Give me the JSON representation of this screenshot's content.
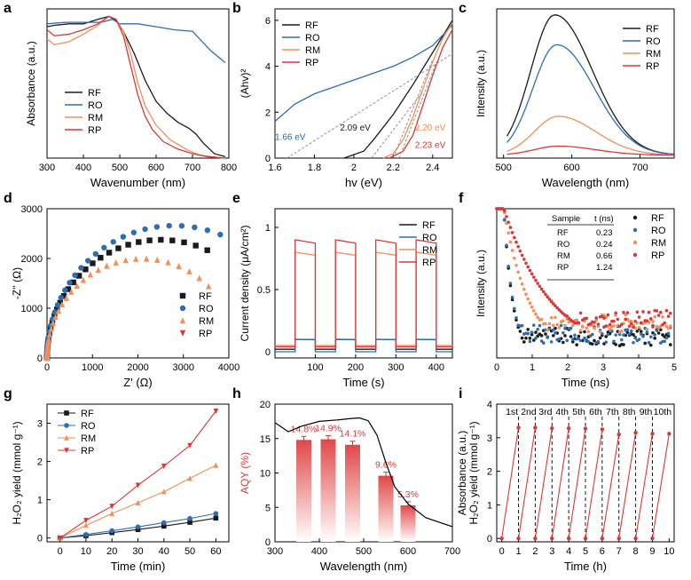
{
  "colors": {
    "RF": "#1a1a1a",
    "RO": "#2e6db0",
    "RM": "#f0905a",
    "RP": "#d9383a",
    "AQY_bar": "#e04848",
    "bg": "#ffffff"
  },
  "chart_data": [
    {
      "panel": "a",
      "type": "line",
      "title": "",
      "xlabel": "Wavenumber (nm)",
      "ylabel": "Absorbance (a.u.)",
      "xlim": [
        300,
        800
      ],
      "ylim": [
        0,
        1
      ],
      "xticks": [
        300,
        400,
        500,
        600,
        700,
        800
      ],
      "yticks": [],
      "legend": [
        "RF",
        "RO",
        "RM",
        "RP"
      ],
      "legend_position": "bottom-left",
      "series": [
        {
          "name": "RF",
          "x": [
            300,
            320,
            360,
            400,
            440,
            470,
            490,
            510,
            540,
            570,
            600,
            630,
            660,
            690,
            710,
            730,
            760,
            790
          ],
          "y": [
            0.88,
            0.89,
            0.9,
            0.9,
            0.93,
            0.95,
            0.92,
            0.85,
            0.7,
            0.52,
            0.38,
            0.3,
            0.24,
            0.2,
            0.16,
            0.1,
            0.03,
            0.01
          ]
        },
        {
          "name": "RO",
          "x": [
            300,
            350,
            400,
            450,
            480,
            500,
            550,
            600,
            650,
            700,
            750,
            790
          ],
          "y": [
            0.9,
            0.91,
            0.91,
            0.91,
            0.93,
            0.9,
            0.9,
            0.88,
            0.86,
            0.85,
            0.72,
            0.64
          ]
        },
        {
          "name": "RM",
          "x": [
            300,
            320,
            360,
            400,
            440,
            470,
            490,
            510,
            530,
            550,
            570,
            600,
            640,
            690,
            720,
            750,
            790
          ],
          "y": [
            0.8,
            0.76,
            0.78,
            0.83,
            0.89,
            0.95,
            0.93,
            0.85,
            0.7,
            0.5,
            0.35,
            0.22,
            0.12,
            0.05,
            0.02,
            0.01,
            0.0
          ]
        },
        {
          "name": "RP",
          "x": [
            300,
            320,
            360,
            400,
            440,
            470,
            490,
            510,
            530,
            550,
            570,
            590,
            620,
            660,
            700,
            740,
            790
          ],
          "y": [
            0.86,
            0.82,
            0.83,
            0.86,
            0.9,
            0.95,
            0.93,
            0.82,
            0.62,
            0.42,
            0.28,
            0.19,
            0.11,
            0.06,
            0.03,
            0.01,
            0.0
          ]
        }
      ]
    },
    {
      "panel": "b",
      "type": "line",
      "title": "",
      "xlabel": "hv (eV)",
      "ylabel": "(Ahv)²",
      "xlim": [
        1.6,
        2.5
      ],
      "ylim": [
        0,
        6.5
      ],
      "xticks": [
        1.6,
        1.8,
        2.0,
        2.2,
        2.4
      ],
      "yticks": [
        0,
        2,
        4,
        6
      ],
      "legend": [
        "RF",
        "RO",
        "RM",
        "RP"
      ],
      "legend_position": "top-left",
      "series": [
        {
          "name": "RF",
          "x": [
            1.95,
            2.05,
            2.1,
            2.2,
            2.3,
            2.4,
            2.5
          ],
          "y": [
            0.0,
            0.3,
            0.8,
            1.9,
            3.2,
            4.6,
            6.0
          ]
        },
        {
          "name": "RO",
          "x": [
            1.6,
            1.7,
            1.8,
            1.9,
            2.0,
            2.1,
            2.2,
            2.3,
            2.4,
            2.5
          ],
          "y": [
            1.6,
            2.35,
            2.8,
            3.1,
            3.4,
            3.7,
            4.0,
            4.4,
            4.9,
            5.8
          ]
        },
        {
          "name": "RM",
          "x": [
            2.15,
            2.2,
            2.25,
            2.3,
            2.35,
            2.4,
            2.45,
            2.5
          ],
          "y": [
            0.0,
            0.2,
            0.8,
            1.8,
            3.0,
            4.2,
            5.2,
            5.9
          ]
        },
        {
          "name": "RP",
          "x": [
            2.18,
            2.25,
            2.3,
            2.35,
            2.4,
            2.45,
            2.5
          ],
          "y": [
            0.0,
            0.3,
            1.0,
            2.3,
            3.6,
            4.8,
            5.6
          ]
        }
      ],
      "annotations": [
        {
          "text": "1.66 eV",
          "color": "#2e6db0",
          "x": 1.6,
          "y": 0.8
        },
        {
          "text": "2.09 eV",
          "color": "#1a1a1a",
          "x": 1.93,
          "y": 1.2
        },
        {
          "text": "2.20 eV",
          "color": "#f0905a",
          "x": 2.31,
          "y": 1.2
        },
        {
          "text": "2.23 eV",
          "color": "#d9383a",
          "x": 2.31,
          "y": 0.45
        }
      ]
    },
    {
      "panel": "c",
      "type": "line",
      "title": "",
      "xlabel": "Wavelength (nm)",
      "ylabel": "Intensity (a.u.)",
      "xlim": [
        490,
        750
      ],
      "ylim": [
        0,
        1
      ],
      "xticks": [
        500,
        600,
        700
      ],
      "yticks": [],
      "legend": [
        "RF",
        "RO",
        "RM",
        "RP"
      ],
      "legend_position": "top-right",
      "series": [
        {
          "name": "RF",
          "peak": 575,
          "amp": 0.94
        },
        {
          "name": "RO",
          "peak": 578,
          "amp": 0.74
        },
        {
          "name": "RM",
          "peak": 580,
          "amp": 0.26
        },
        {
          "name": "RP",
          "peak": 580,
          "amp": 0.06
        }
      ]
    },
    {
      "panel": "d",
      "type": "scatter",
      "title": "",
      "xlabel": "Z' (Ω)",
      "ylabel": "-Z'' (Ω)",
      "xlim": [
        0,
        4000
      ],
      "ylim": [
        0,
        3000
      ],
      "xticks": [
        0,
        1000,
        2000,
        3000,
        4000
      ],
      "yticks": [
        0,
        1000,
        2000,
        3000
      ],
      "legend": [
        "RF",
        "RO",
        "RM",
        "RP"
      ],
      "legend_position": "bottom-right",
      "series": [
        {
          "name": "RF",
          "R": 5000,
          "xmax": 3650
        },
        {
          "name": "RO",
          "R": 5600,
          "xmax": 3950
        },
        {
          "name": "RM",
          "R": 4200,
          "xmax": 3650
        },
        {
          "name": "RP",
          "R": 3400,
          "xmax": 3550
        }
      ]
    },
    {
      "panel": "e",
      "type": "line",
      "title": "",
      "xlabel": "Time (s)",
      "ylabel": "Current density (μA/cm²)",
      "xlim": [
        0,
        440
      ],
      "ylim": [
        -0.05,
        1.15
      ],
      "xticks": [
        100,
        200,
        300,
        400
      ],
      "yticks": [
        0.0,
        0.5,
        1.0
      ],
      "legend": [
        "RF",
        "RO",
        "RM",
        "RP"
      ],
      "legend_position": "top-right",
      "on_intervals": [
        [
          50,
          100
        ],
        [
          150,
          200
        ],
        [
          250,
          300
        ],
        [
          350,
          400
        ]
      ],
      "series": [
        {
          "name": "RF",
          "on": 0.1,
          "off": 0.02
        },
        {
          "name": "RO",
          "on": 0.1,
          "off": 0.0
        },
        {
          "name": "RM",
          "on": 0.8,
          "off": 0.05
        },
        {
          "name": "RP",
          "on": 0.9,
          "off": 0.04
        }
      ]
    },
    {
      "panel": "f",
      "type": "scatter",
      "title": "",
      "xlabel": "Time (ns)",
      "ylabel": "Intensity (a.u.)",
      "xlim": [
        0,
        5
      ],
      "ylim": [
        0,
        1
      ],
      "xticks": [
        0,
        1,
        2,
        3,
        4,
        5
      ],
      "yticks": [],
      "legend": [
        "RF",
        "RO",
        "RM",
        "RP"
      ],
      "legend_position": "top-right",
      "table_header": [
        "Sample",
        "t (ns)"
      ],
      "table_rows": [
        [
          "RF",
          "0.23"
        ],
        [
          "RO",
          "0.24"
        ],
        [
          "RM",
          "0.66"
        ],
        [
          "RP",
          "1.24"
        ]
      ],
      "series": [
        {
          "name": "RF",
          "tau": 0.23,
          "floor": 0.08
        },
        {
          "name": "RO",
          "tau": 0.24,
          "floor": 0.1
        },
        {
          "name": "RM",
          "tau": 0.66,
          "floor": 0.17
        },
        {
          "name": "RP",
          "tau": 1.24,
          "floor": 0.2
        }
      ]
    },
    {
      "panel": "g",
      "type": "line",
      "title": "",
      "xlabel": "Time (min)",
      "ylabel": "H₂O₂ yield (mmol g⁻¹)",
      "xlim": [
        -5,
        65
      ],
      "ylim": [
        -0.1,
        3.5
      ],
      "xticks": [
        0,
        10,
        20,
        30,
        40,
        50,
        60
      ],
      "yticks": [
        0,
        1,
        2,
        3
      ],
      "legend": [
        "RF",
        "RO",
        "RM",
        "RP"
      ],
      "legend_position": "top-left",
      "x": [
        0,
        10,
        20,
        30,
        40,
        50,
        60
      ],
      "series": [
        {
          "name": "RF",
          "values": [
            0.0,
            0.06,
            0.14,
            0.22,
            0.31,
            0.41,
            0.52
          ]
        },
        {
          "name": "RO",
          "values": [
            0.0,
            0.09,
            0.19,
            0.29,
            0.4,
            0.51,
            0.64
          ]
        },
        {
          "name": "RM",
          "values": [
            0.0,
            0.33,
            0.64,
            0.92,
            1.21,
            1.56,
            1.9
          ]
        },
        {
          "name": "RP",
          "values": [
            0.0,
            0.46,
            0.83,
            1.38,
            1.88,
            2.42,
            3.32
          ]
        }
      ]
    },
    {
      "panel": "h",
      "type": "bar",
      "title": "",
      "xlabel": "Wavelength (nm)",
      "ylabel": "AQY (%)",
      "xlim": [
        300,
        700
      ],
      "ylim": [
        0,
        20
      ],
      "xticks": [
        300,
        400,
        500,
        600,
        700
      ],
      "yticks": [
        0,
        5,
        10,
        15,
        20
      ],
      "categories": [
        365,
        420,
        475,
        550,
        600
      ],
      "values": [
        14.8,
        14.9,
        14.1,
        9.6,
        5.3
      ],
      "labels": [
        "14.8%",
        "14.9%",
        "14.1%",
        "9.6%",
        "5.3%"
      ],
      "absorption_curve": {
        "x": [
          300,
          330,
          360,
          400,
          440,
          470,
          490,
          510,
          530,
          550,
          570,
          600,
          640,
          700
        ],
        "y": [
          17.3,
          16.0,
          16.8,
          17.5,
          17.7,
          17.9,
          18.0,
          17.6,
          15.5,
          11.5,
          8.0,
          5.5,
          3.5,
          2.2
        ]
      }
    },
    {
      "panel": "i",
      "type": "line",
      "title": "",
      "xlabel": "Time (h)",
      "ylabel": "H₂O₂ yield (mmol g⁻¹)",
      "extra_ylabel": "Absorbance (a.u.)",
      "xlim": [
        -0.3,
        10.3
      ],
      "ylim": [
        -0.1,
        4
      ],
      "xticks": [
        0,
        1,
        2,
        3,
        4,
        5,
        6,
        7,
        8,
        9,
        10
      ],
      "yticks": [
        0,
        1,
        2,
        3,
        4
      ],
      "cycle_labels": [
        "1st",
        "2nd",
        "3rd",
        "4th",
        "5th",
        "6th",
        "7th",
        "8th",
        "9th",
        "10th"
      ],
      "peak_values": [
        3.3,
        3.3,
        3.28,
        3.28,
        3.27,
        3.25,
        3.1,
        3.15,
        3.12,
        3.12
      ]
    }
  ],
  "panel_letters": [
    "a",
    "b",
    "c",
    "d",
    "e",
    "f",
    "g",
    "h",
    "i"
  ]
}
